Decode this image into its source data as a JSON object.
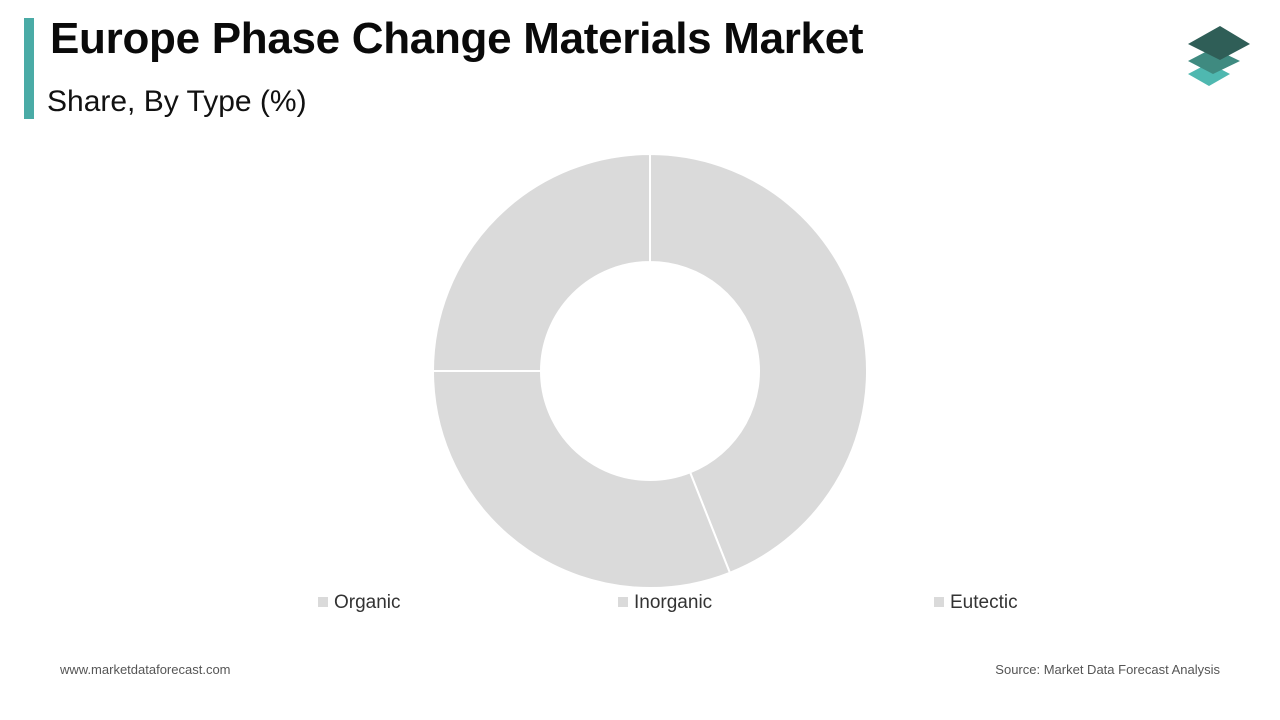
{
  "header": {
    "title": "Europe Phase Change Materials Market",
    "subtitle": "Share, By Type (%)"
  },
  "brand": {
    "accent_color": "#4aaba6",
    "logo_icon": "stacked-layers-logo-icon",
    "logo_colors": [
      "#2f5e57",
      "#3f8a80",
      "#4fb8b0"
    ]
  },
  "chart_data": {
    "type": "donut",
    "categories": [
      "Organic",
      "Inorganic",
      "Eutectic"
    ],
    "values": [
      44,
      31,
      25
    ],
    "colors": [
      "#dadada",
      "#dadada",
      "#dadada"
    ],
    "legend_position": "bottom",
    "start_angle_deg": 0,
    "direction": "clockwise"
  },
  "footer": {
    "website": "www.marketdataforecast.com",
    "source": "Source: Market Data Forecast Analysis"
  }
}
